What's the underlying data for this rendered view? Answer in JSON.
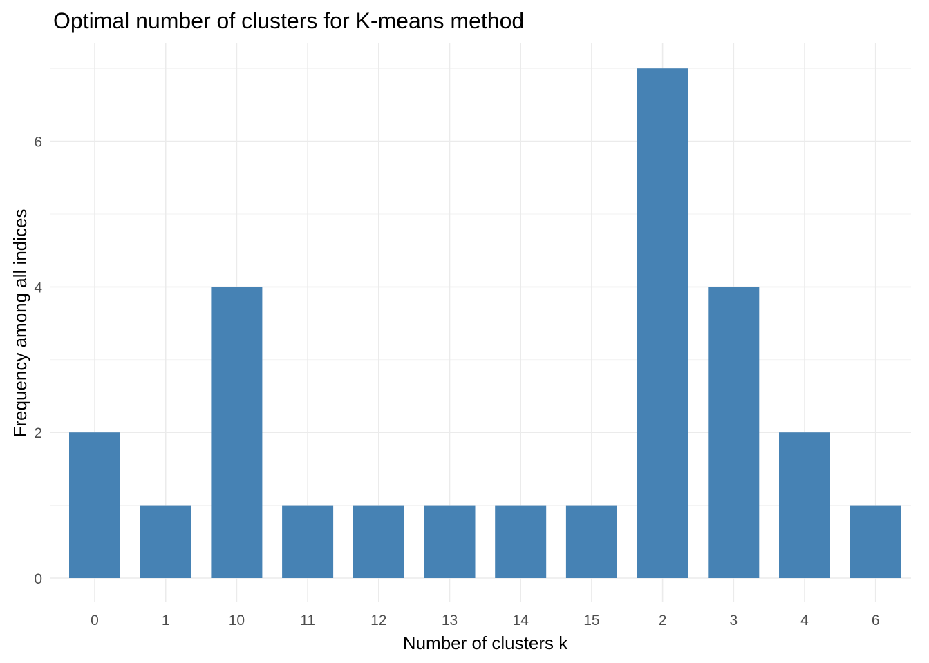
{
  "chart_data": {
    "type": "bar",
    "title": "Optimal number of clusters for K-means method",
    "xlabel": "Number of clusters k",
    "ylabel": "Frequency among all indices",
    "categories": [
      "0",
      "1",
      "10",
      "11",
      "12",
      "13",
      "14",
      "15",
      "2",
      "3",
      "4",
      "6"
    ],
    "values": [
      2,
      1,
      4,
      1,
      1,
      1,
      1,
      1,
      7,
      4,
      2,
      1
    ],
    "ylim": [
      0,
      7.35
    ],
    "yticks": [
      0,
      2,
      4,
      6
    ],
    "grid": true,
    "legend": "none",
    "bar_color": "#4682B4"
  }
}
